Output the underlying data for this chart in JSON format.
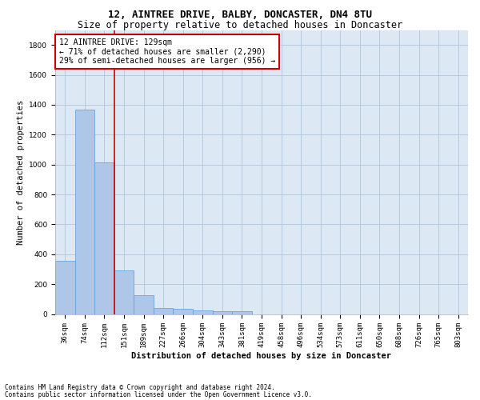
{
  "title1": "12, AINTREE DRIVE, BALBY, DONCASTER, DN4 8TU",
  "title2": "Size of property relative to detached houses in Doncaster",
  "xlabel": "Distribution of detached houses by size in Doncaster",
  "ylabel": "Number of detached properties",
  "bar_values": [
    355,
    1365,
    1015,
    290,
    125,
    42,
    35,
    25,
    18,
    18,
    0,
    0,
    0,
    0,
    0,
    0,
    0,
    0,
    0,
    0,
    0
  ],
  "categories": [
    "36sqm",
    "74sqm",
    "112sqm",
    "151sqm",
    "189sqm",
    "227sqm",
    "266sqm",
    "304sqm",
    "343sqm",
    "381sqm",
    "419sqm",
    "458sqm",
    "496sqm",
    "534sqm",
    "573sqm",
    "611sqm",
    "650sqm",
    "688sqm",
    "726sqm",
    "765sqm",
    "803sqm"
  ],
  "bar_color": "#aec6e8",
  "bar_edge_color": "#5b9bd5",
  "vline_x": 2.5,
  "vline_color": "#cc0000",
  "annotation_text": "12 AINTREE DRIVE: 129sqm\n← 71% of detached houses are smaller (2,290)\n29% of semi-detached houses are larger (956) →",
  "annotation_box_color": "#ffffff",
  "annotation_box_edge": "#cc0000",
  "ylim": [
    0,
    1900
  ],
  "footnote1": "Contains HM Land Registry data © Crown copyright and database right 2024.",
  "footnote2": "Contains public sector information licensed under the Open Government Licence v3.0.",
  "background_color": "#ffffff",
  "plot_bg_color": "#dce9f5",
  "grid_color": "#b0c4de",
  "title_fontsize": 9,
  "subtitle_fontsize": 8.5,
  "axis_label_fontsize": 7.5,
  "tick_fontsize": 6.5,
  "annotation_fontsize": 7,
  "footnote_fontsize": 5.5
}
